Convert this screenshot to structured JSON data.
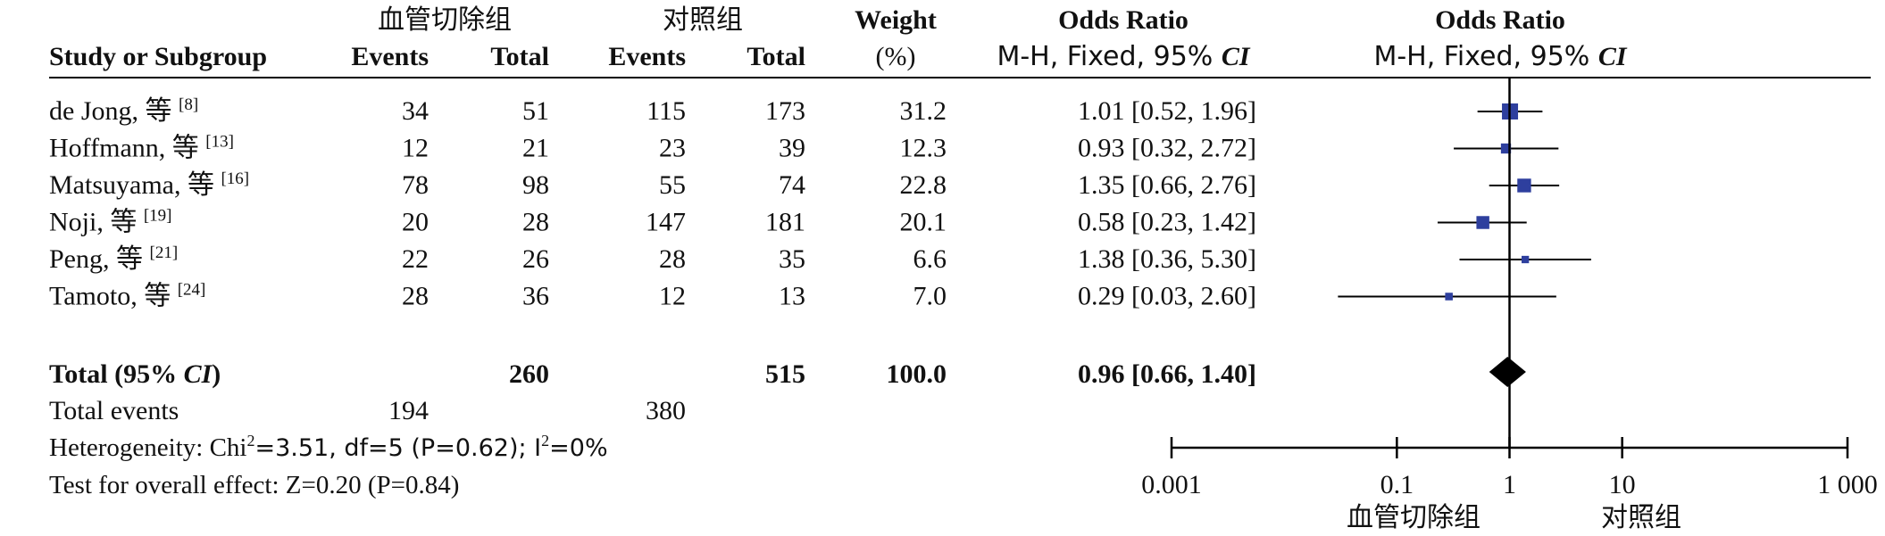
{
  "chart_data": {
    "type": "forest",
    "group_experimental": "血管切除组",
    "group_control": "对照组",
    "header": {
      "study": "Study or Subgroup",
      "events": "Events",
      "total": "Total",
      "weight_top": "Weight",
      "weight_unit": "(%)",
      "or_title": "Odds Ratio",
      "method_prefix": "M-H, Fixed, 95% ",
      "method_ci": "CI"
    },
    "studies": [
      {
        "name": "de Jong, 等",
        "ref": "[8]",
        "e1": "34",
        "t1": "51",
        "e2": "115",
        "t2": "173",
        "weight": "31.2",
        "or": 1.01,
        "lo": 0.52,
        "hi": 1.96,
        "or_text": "1.01 [0.52, 1.96]"
      },
      {
        "name": "Hoffmann, 等",
        "ref": "[13]",
        "e1": "12",
        "t1": "21",
        "e2": "23",
        "t2": "39",
        "weight": "12.3",
        "or": 0.93,
        "lo": 0.32,
        "hi": 2.72,
        "or_text": "0.93 [0.32, 2.72]"
      },
      {
        "name": "Matsuyama, 等",
        "ref": "[16]",
        "e1": "78",
        "t1": "98",
        "e2": "55",
        "t2": "74",
        "weight": "22.8",
        "or": 1.35,
        "lo": 0.66,
        "hi": 2.76,
        "or_text": "1.35 [0.66, 2.76]"
      },
      {
        "name": "Noji, 等",
        "ref": "[19]",
        "e1": "20",
        "t1": "28",
        "e2": "147",
        "t2": "181",
        "weight": "20.1",
        "or": 0.58,
        "lo": 0.23,
        "hi": 1.42,
        "or_text": "0.58 [0.23, 1.42]"
      },
      {
        "name": "Peng, 等",
        "ref": "[21]",
        "e1": "22",
        "t1": "26",
        "e2": "28",
        "t2": "35",
        "weight": "6.6",
        "or": 1.38,
        "lo": 0.36,
        "hi": 5.3,
        "or_text": "1.38 [0.36, 5.30]"
      },
      {
        "name": "Tamoto, 等",
        "ref": "[24]",
        "e1": "28",
        "t1": "36",
        "e2": "12",
        "t2": "13",
        "weight": "7.0",
        "or": 0.29,
        "lo": 0.03,
        "hi": 2.6,
        "or_text": "0.29 [0.03, 2.60]"
      }
    ],
    "total": {
      "label_a": "Total (95% ",
      "label_ci": "CI",
      "label_b": ")",
      "t1": "260",
      "t2": "515",
      "weight": "100.0",
      "or": 0.96,
      "lo": 0.66,
      "hi": 1.4,
      "or_text": "0.96 [0.66, 1.40]"
    },
    "total_events": {
      "label": "Total events",
      "e1": "194",
      "e2": "380"
    },
    "heterogeneity": {
      "prefix": "Heterogeneity: Chi",
      "sup1": "2",
      "mid": "=3.51, df=5 (P=0.62); I",
      "sup2": "2",
      "suffix": "=0%"
    },
    "overall_effect": "Test for overall effect: Z=0.20 (P=0.84)",
    "x_axis": {
      "scale": "log",
      "ticks": [
        0.001,
        0.1,
        1,
        10,
        1000
      ],
      "tick_labels": [
        "0.001",
        "0.1",
        "1",
        "10",
        "1 000"
      ]
    },
    "favours_left": "血管切除组",
    "favours_right": "对照组",
    "colors": {
      "marker": "#2e3f9e",
      "line": "#000000",
      "text": "#111111"
    }
  }
}
